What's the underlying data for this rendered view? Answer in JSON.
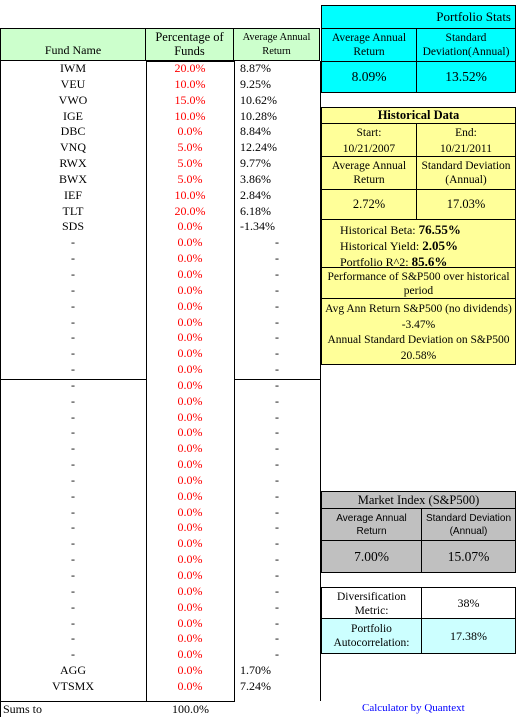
{
  "headers": {
    "fund_name": "Fund Name",
    "percentage": "Percentage of Funds",
    "avg_return": "Average Annual Return"
  },
  "funds": [
    {
      "name": "IWM",
      "pct": "20.0%",
      "ret": "8.87%"
    },
    {
      "name": "VEU",
      "pct": "10.0%",
      "ret": "9.25%"
    },
    {
      "name": "VWO",
      "pct": "15.0%",
      "ret": "10.62%"
    },
    {
      "name": "IGE",
      "pct": "10.0%",
      "ret": "10.28%"
    },
    {
      "name": "DBC",
      "pct": "0.0%",
      "ret": "8.84%"
    },
    {
      "name": "VNQ",
      "pct": "5.0%",
      "ret": "12.24%"
    },
    {
      "name": "RWX",
      "pct": "5.0%",
      "ret": "9.77%"
    },
    {
      "name": "BWX",
      "pct": "5.0%",
      "ret": "3.86%"
    },
    {
      "name": "IEF",
      "pct": "10.0%",
      "ret": "2.84%"
    },
    {
      "name": "TLT",
      "pct": "20.0%",
      "ret": "6.18%"
    },
    {
      "name": "SDS",
      "pct": "0.0%",
      "ret": "-1.34%"
    },
    {
      "name": "-",
      "pct": "0.0%",
      "ret": "-"
    },
    {
      "name": "-",
      "pct": "0.0%",
      "ret": "-"
    },
    {
      "name": "-",
      "pct": "0.0%",
      "ret": "-"
    },
    {
      "name": "-",
      "pct": "0.0%",
      "ret": "-"
    },
    {
      "name": "-",
      "pct": "0.0%",
      "ret": "-"
    },
    {
      "name": "-",
      "pct": "0.0%",
      "ret": "-"
    },
    {
      "name": "-",
      "pct": "0.0%",
      "ret": "-"
    },
    {
      "name": "-",
      "pct": "0.0%",
      "ret": "-"
    },
    {
      "name": "-",
      "pct": "0.0%",
      "ret": "-"
    },
    {
      "name": "-",
      "pct": "0.0%",
      "ret": "-"
    },
    {
      "name": "-",
      "pct": "0.0%",
      "ret": "-"
    },
    {
      "name": "-",
      "pct": "0.0%",
      "ret": "-"
    },
    {
      "name": "-",
      "pct": "0.0%",
      "ret": "-"
    },
    {
      "name": "-",
      "pct": "0.0%",
      "ret": "-"
    },
    {
      "name": "-",
      "pct": "0.0%",
      "ret": "-"
    },
    {
      "name": "-",
      "pct": "0.0%",
      "ret": "-"
    },
    {
      "name": "-",
      "pct": "0.0%",
      "ret": "-"
    },
    {
      "name": "-",
      "pct": "0.0%",
      "ret": "-"
    },
    {
      "name": "-",
      "pct": "0.0%",
      "ret": "-"
    },
    {
      "name": "-",
      "pct": "0.0%",
      "ret": "-"
    },
    {
      "name": "-",
      "pct": "0.0%",
      "ret": "-"
    },
    {
      "name": "-",
      "pct": "0.0%",
      "ret": "-"
    },
    {
      "name": "-",
      "pct": "0.0%",
      "ret": "-"
    },
    {
      "name": "-",
      "pct": "0.0%",
      "ret": "-"
    },
    {
      "name": "-",
      "pct": "0.0%",
      "ret": "-"
    },
    {
      "name": "-",
      "pct": "0.0%",
      "ret": "-"
    },
    {
      "name": "-",
      "pct": "0.0%",
      "ret": "-"
    },
    {
      "name": "AGG",
      "pct": "0.0%",
      "ret": "1.70%"
    },
    {
      "name": "VTSMX",
      "pct": "0.0%",
      "ret": "7.24%"
    }
  ],
  "sums": {
    "label": "Sums to",
    "value": "100.0%"
  },
  "portfolio_stats": {
    "title": "Portfolio Stats",
    "avg_return_label": "Average Annual Return",
    "std_dev_label": "Standard Deviation(Annual)",
    "avg_return": "8.09%",
    "std_dev": "13.52%"
  },
  "historical": {
    "title": "Historical Data",
    "start_label": "Start:",
    "start": "10/21/2007",
    "end_label": "End:",
    "end": "10/21/2011",
    "avg_return_label": "Average Annual Return",
    "std_dev_label": "Standard Deviation (Annual)",
    "avg_return": "2.72%",
    "std_dev": "17.03%",
    "beta_label": "Historical Beta:",
    "beta": "76.55%",
    "yield_label": "Historical Yield:",
    "yield": "2.05%",
    "r2_label": "Portfolio R^2:",
    "r2": "85.6%"
  },
  "sp500_perf": {
    "title": "Performance of S&P500 over historical period",
    "avg_label": "Avg Ann Return S&P500 (no dividends)",
    "avg": "-3.47%",
    "std_label": "Annual Standard Deviation on S&P500",
    "std": "20.58%"
  },
  "market_index": {
    "title": "Market Index (S&P500)",
    "avg_return_label": "Average Annual Return",
    "std_dev_label": "Standard Deviation (Annual)",
    "avg_return": "7.00%",
    "std_dev": "15.07%"
  },
  "diversification": {
    "label": "Diversification Metric:",
    "value": "38%"
  },
  "autocorrelation": {
    "label": "Portfolio Autocorrelation:",
    "value": "17.38%"
  },
  "footer": {
    "credit": "Calculator by Quantext"
  },
  "colors": {
    "header_green": "#ccffcc",
    "cyan": "#00ffff",
    "light_cyan": "#ccffff",
    "yellow": "#ffff99",
    "gray": "#c0c0c0",
    "red_text": "#ff0000",
    "link_blue": "#0000ff"
  }
}
